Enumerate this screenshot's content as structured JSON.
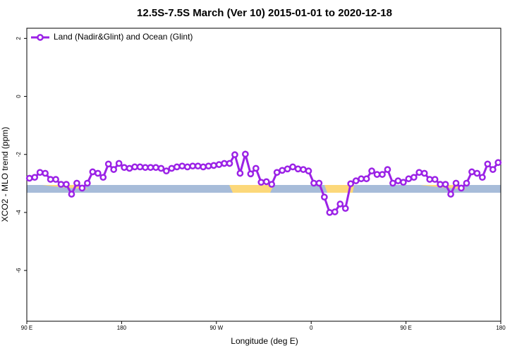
{
  "chart_data": {
    "type": "line",
    "title": "12.5S-7.5S March (Ver 10)   2015-01-01 to 2020-12-18",
    "x_label": "Longitude (deg E)",
    "y_label": "XCO2 - MLO trend (ppm)",
    "xlim": [
      90,
      540
    ],
    "xticks": [
      {
        "value": 90,
        "label": "90 E"
      },
      {
        "value": 180,
        "label": "180"
      },
      {
        "value": 270,
        "label": "90 W"
      },
      {
        "value": 360,
        "label": "0"
      },
      {
        "value": 450,
        "label": "90 E"
      },
      {
        "value": 540,
        "label": "180"
      }
    ],
    "ylim": [
      -7.75,
      2.35
    ],
    "yticks": [
      2,
      0,
      -2,
      -4,
      -6
    ],
    "legend": "top-left",
    "x": [
      92.5,
      97.5,
      102.5,
      107.5,
      112.5,
      117.5,
      122.5,
      127.5,
      132.5,
      137.5,
      142.5,
      147.5,
      152.5,
      157.5,
      162.5,
      167.5,
      172.5,
      177.5,
      182.5,
      187.5,
      192.5,
      197.5,
      202.5,
      207.5,
      212.5,
      217.5,
      222.5,
      227.5,
      232.5,
      237.5,
      242.5,
      247.5,
      252.5,
      257.5,
      262.5,
      267.5,
      272.5,
      277.5,
      282.5,
      287.5,
      292.5,
      297.5,
      302.5,
      307.5,
      312.5,
      317.5,
      322.5,
      327.5,
      332.5,
      337.5,
      342.5,
      347.5,
      352.5,
      357.5,
      362.5,
      367.5,
      372.5,
      377.5,
      382.5,
      387.5,
      392.5,
      397.5,
      402.5,
      407.5,
      412.5,
      417.5,
      422.5,
      427.5,
      432.5,
      437.5,
      442.5,
      447.5,
      452.5,
      457.5,
      462.5,
      467.5,
      472.5,
      477.5,
      482.5,
      487.5,
      492.5,
      497.5,
      502.5,
      507.5,
      512.5,
      517.5,
      522.5,
      527.5,
      532.5,
      537.5
    ],
    "series": [
      {
        "name": "Land (Nadir&Glint) and Ocean (Glint)",
        "color": "#9b22e6",
        "values": [
          -2.82,
          -2.79,
          -2.62,
          -2.65,
          -2.86,
          -2.86,
          -3.03,
          -3.03,
          -3.37,
          -2.99,
          -3.16,
          -2.99,
          -2.6,
          -2.65,
          -2.79,
          -2.33,
          -2.52,
          -2.31,
          -2.45,
          -2.48,
          -2.43,
          -2.43,
          -2.45,
          -2.45,
          -2.45,
          -2.48,
          -2.57,
          -2.48,
          -2.43,
          -2.4,
          -2.43,
          -2.4,
          -2.4,
          -2.43,
          -2.4,
          -2.38,
          -2.35,
          -2.31,
          -2.31,
          -2.01,
          -2.65,
          -1.99,
          -2.67,
          -2.48,
          -2.96,
          -2.94,
          -3.03,
          -2.62,
          -2.55,
          -2.5,
          -2.43,
          -2.5,
          -2.52,
          -2.57,
          -2.99,
          -2.99,
          -3.47,
          -4.0,
          -3.98,
          -3.71,
          -3.86,
          -3.01,
          -2.91,
          -2.84,
          -2.84,
          -2.57,
          -2.69,
          -2.69,
          -2.52,
          -2.99,
          -2.91,
          -2.96,
          -2.84,
          -2.79,
          -2.62,
          -2.65,
          -2.86,
          -2.86,
          -3.03,
          -3.03,
          -3.37,
          -2.99,
          -3.16,
          -2.99,
          -2.6,
          -2.65,
          -2.79,
          -2.33,
          -2.52,
          -2.28
        ]
      }
    ]
  }
}
